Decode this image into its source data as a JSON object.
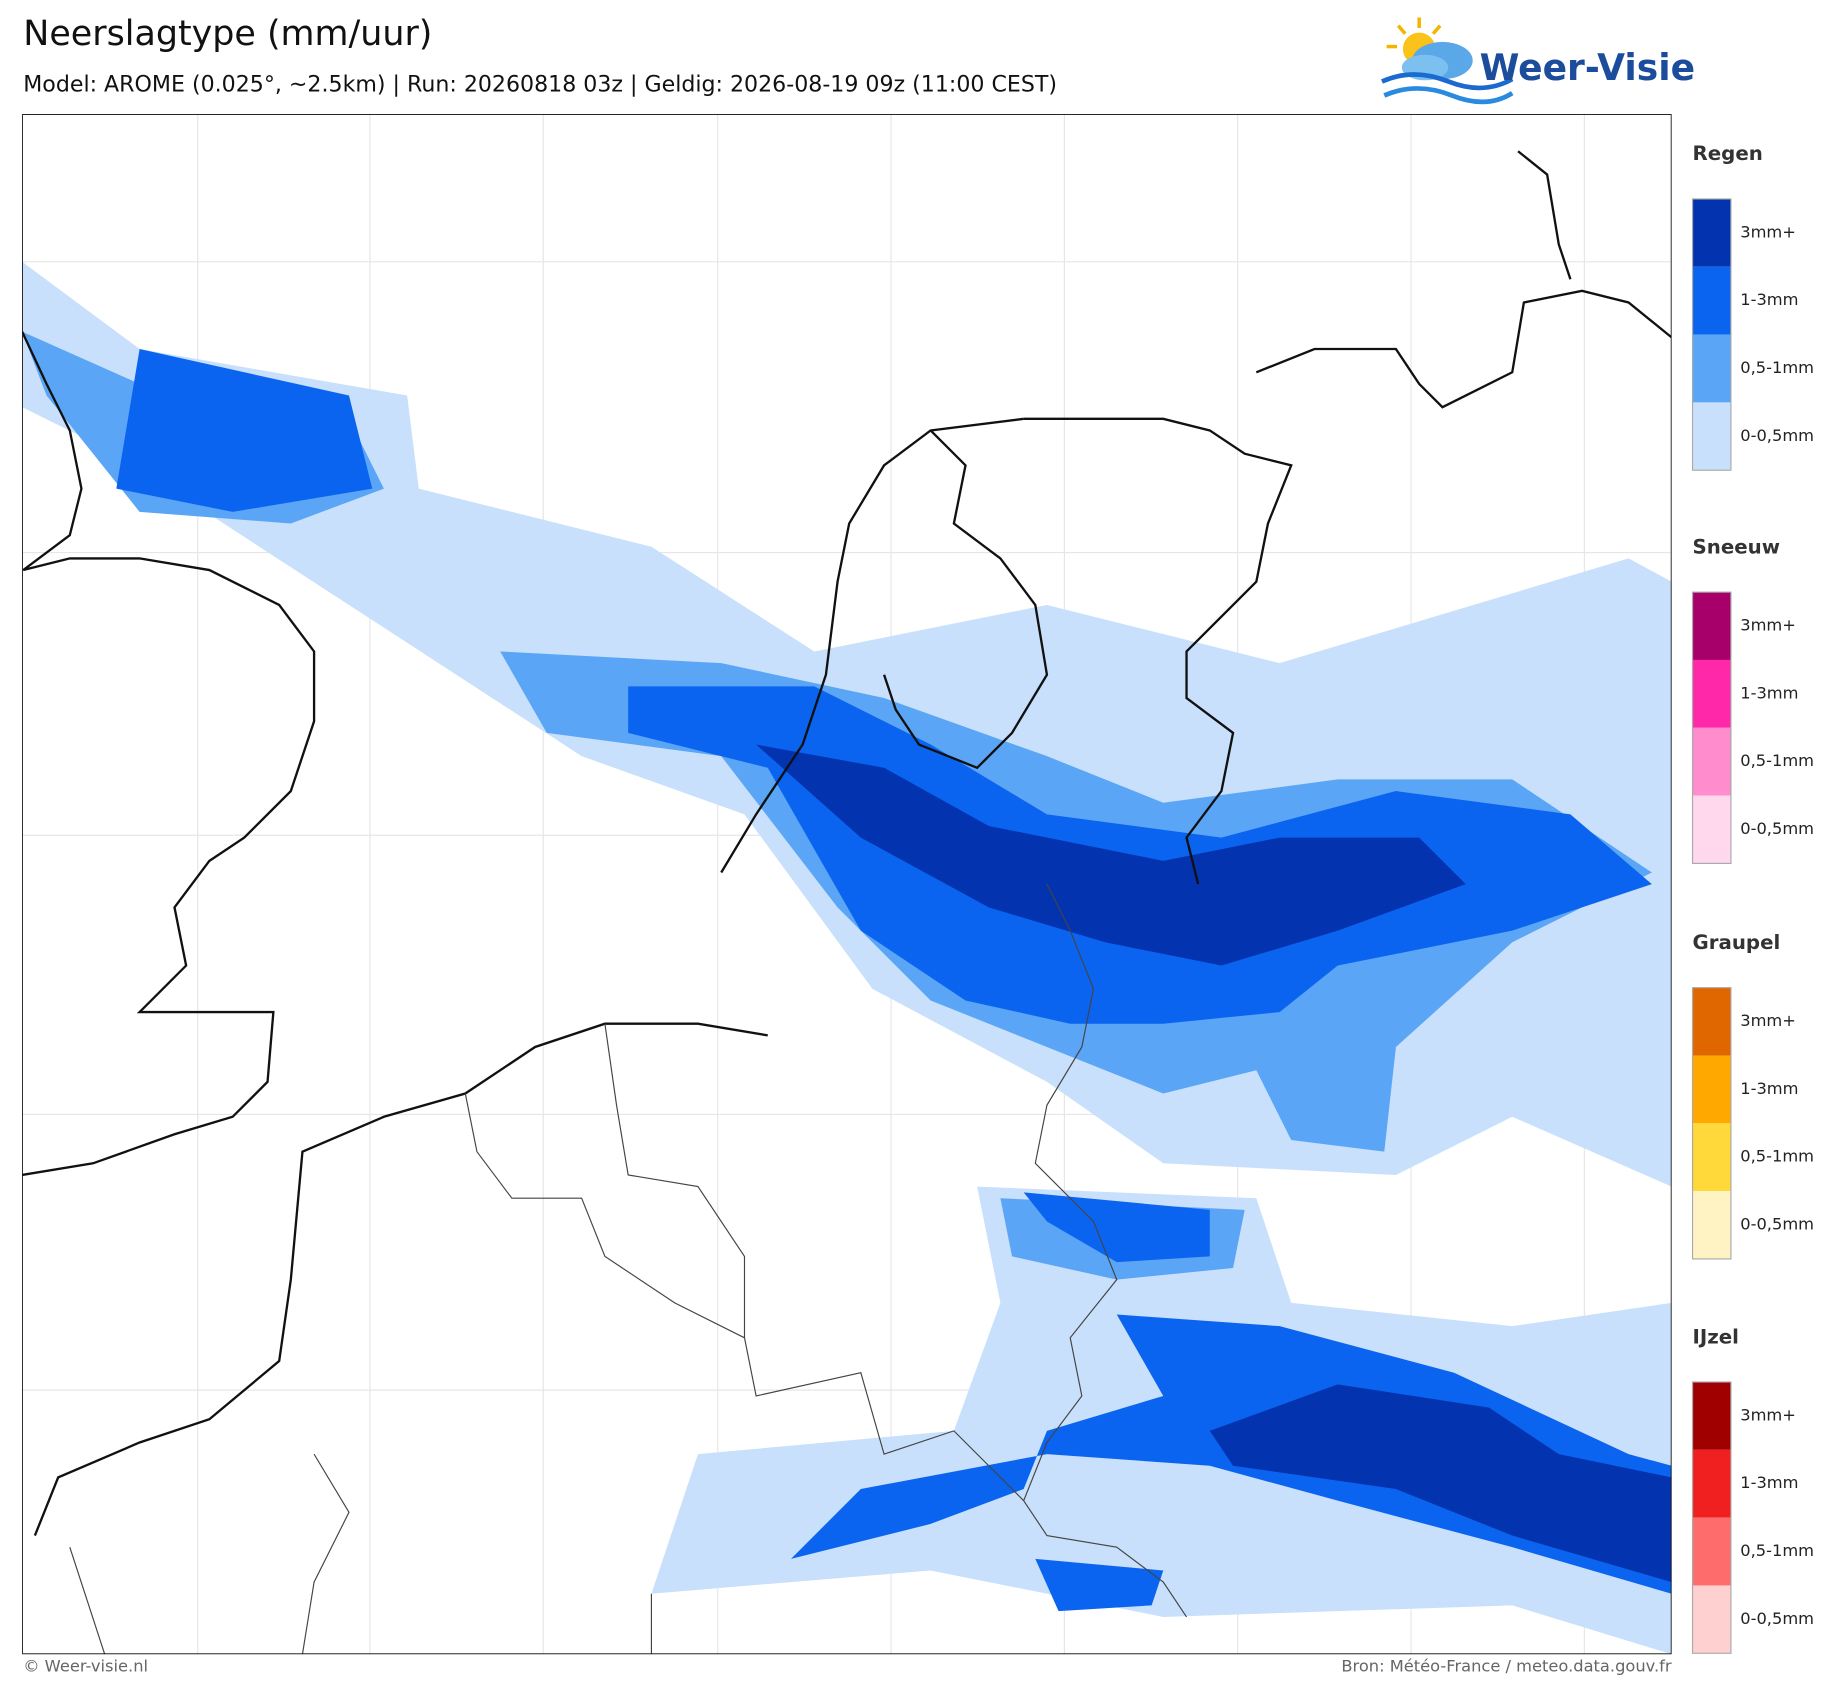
{
  "header": {
    "title": "Neerslagtype (mm/uur)",
    "subtitle": "Model: AROME (0.025°, ~2.5km)  |  Run: 20260818 03z  |  Geldig: 2026-08-19 09z (11:00 CEST)",
    "logo": "Weer-Visie"
  },
  "legend": [
    {
      "title": "Regen",
      "items": [
        {
          "label": "3mm+",
          "color": "#0433b0"
        },
        {
          "label": "1-3mm",
          "color": "#0a64f0"
        },
        {
          "label": "0,5-1mm",
          "color": "#5aa5f5"
        },
        {
          "label": "0-0,5mm",
          "color": "#c8e0fb"
        }
      ]
    },
    {
      "title": "Sneeuw",
      "items": [
        {
          "label": "3mm+",
          "color": "#a8006a"
        },
        {
          "label": "1-3mm",
          "color": "#ff28a8"
        },
        {
          "label": "0,5-1mm",
          "color": "#ff8ccc"
        },
        {
          "label": "0-0,5mm",
          "color": "#ffd8ee"
        }
      ]
    },
    {
      "title": "Graupel",
      "items": [
        {
          "label": "3mm+",
          "color": "#e06600"
        },
        {
          "label": "1-3mm",
          "color": "#ffa800"
        },
        {
          "label": "0,5-1mm",
          "color": "#ffd83a"
        },
        {
          "label": "0-0,5mm",
          "color": "#fff3c4"
        }
      ]
    },
    {
      "title": "IJzel",
      "items": [
        {
          "label": "3mm+",
          "color": "#a00000"
        },
        {
          "label": "1-3mm",
          "color": "#f02020"
        },
        {
          "label": "0,5-1mm",
          "color": "#ff6c6c"
        },
        {
          "label": "0-0,5mm",
          "color": "#ffd0d0"
        }
      ]
    }
  ],
  "footer": {
    "left": "© Weer-visie.nl",
    "right": "Bron: Météo-France / meteo.data.gouv.fr"
  }
}
